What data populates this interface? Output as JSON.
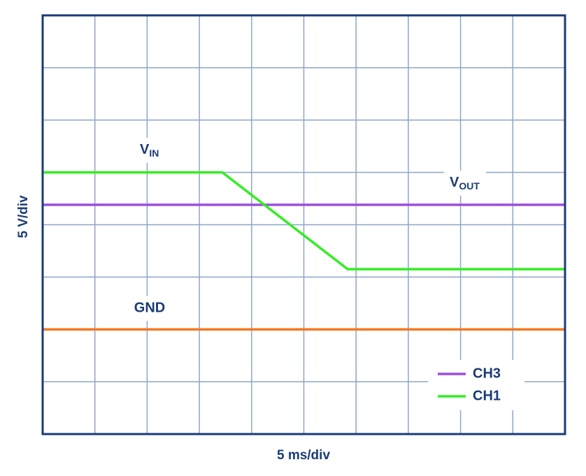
{
  "chart_data": {
    "type": "line",
    "xlabel": "5 ms/div",
    "ylabel": "5 V/div",
    "xlim": [
      0,
      10
    ],
    "ylim": [
      0,
      8
    ],
    "xticks": [
      0,
      1,
      2,
      3,
      4,
      5,
      6,
      7,
      8,
      9,
      10
    ],
    "yticks": [
      0,
      1,
      2,
      3,
      4,
      5,
      6,
      7,
      8
    ],
    "grid": true,
    "legend": "lower right",
    "series": [
      {
        "name": "CH3",
        "color": "#9b4fe0",
        "x": [
          0,
          10
        ],
        "values": [
          4.38,
          4.38
        ]
      },
      {
        "name": "CH1",
        "color": "#33ee22",
        "x": [
          0,
          3.44,
          5.84,
          10
        ],
        "values": [
          5,
          5,
          3.15,
          3.15
        ]
      }
    ],
    "reference_lines": [
      {
        "value": 2,
        "color": "#f47920",
        "label": "GND"
      }
    ],
    "annotations": [
      {
        "text": "V",
        "sub": "IN"
      },
      {
        "text": "V",
        "sub": "OUT"
      }
    ]
  }
}
